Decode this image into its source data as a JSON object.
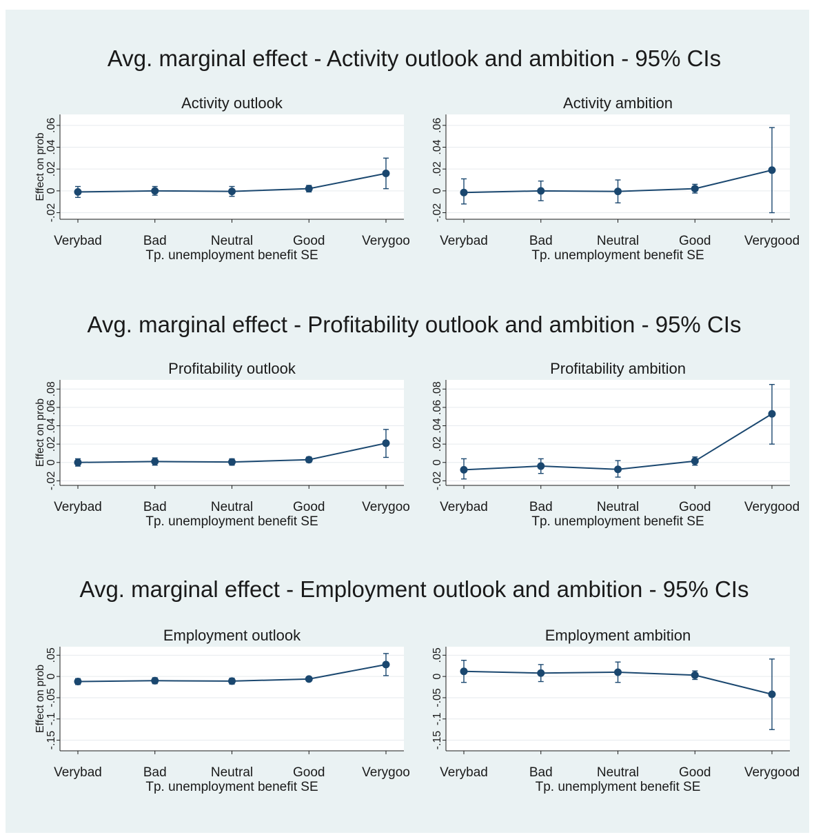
{
  "colors": {
    "figure_bg": "#eaf2f3",
    "plot_bg": "#ffffff",
    "series": "#1a476f",
    "grid": "#e6eaee",
    "text": "#1a1a1a"
  },
  "group_titles": [
    "Avg. marginal effect - Activity outlook and ambition - 95% CIs",
    "Avg. marginal effect - Profitability outlook and ambition - 95% CIs",
    "Avg. marginal effect - Employment outlook and ambition - 95% CIs"
  ],
  "chart_data": [
    {
      "type": "line",
      "title": "Activity outlook",
      "xlabel": "Tp. unemployment benefit SE",
      "ylabel": "Effect on prob",
      "categories": [
        "Verybad",
        "Bad",
        "Neutral",
        "Good",
        "Verygood"
      ],
      "category_labels": [
        "Verybad",
        "Bad",
        "Neutral",
        "Good",
        "Verygoo"
      ],
      "y_tick_labels": [
        "-.02",
        "0",
        ".02",
        ".04",
        ".06"
      ],
      "series": [
        {
          "values": [
            -0.001,
            0.0,
            -0.0005,
            0.002,
            0.016
          ],
          "ci_low": [
            -0.006,
            -0.004,
            -0.005,
            -0.001,
            0.002
          ],
          "ci_high": [
            0.004,
            0.004,
            0.004,
            0.005,
            0.03
          ]
        }
      ],
      "ylim": [
        -0.026,
        0.07
      ],
      "grid": true,
      "error_bars": "95% CI"
    },
    {
      "type": "line",
      "title": "Activity ambition",
      "xlabel": "Tp. unemployment benefit SE",
      "ylabel": "",
      "categories": [
        "Verybad",
        "Bad",
        "Neutral",
        "Good",
        "Verygood"
      ],
      "category_labels": [
        "Verybad",
        "Bad",
        "Neutral",
        "Good",
        "Verygood"
      ],
      "y_tick_labels": [
        "-.02",
        "0",
        ".02",
        ".04",
        ".06"
      ],
      "series": [
        {
          "values": [
            -0.0015,
            0.0,
            -0.0005,
            0.002,
            0.019
          ],
          "ci_low": [
            -0.012,
            -0.009,
            -0.011,
            -0.002,
            -0.02
          ],
          "ci_high": [
            0.011,
            0.009,
            0.01,
            0.006,
            0.058
          ]
        }
      ],
      "ylim": [
        -0.026,
        0.07
      ],
      "grid": true,
      "error_bars": "95% CI"
    },
    {
      "type": "line",
      "title": "Profitability outlook",
      "xlabel": "Tp. unemployment benefit SE",
      "ylabel": "Effect on prob",
      "categories": [
        "Verybad",
        "Bad",
        "Neutral",
        "Good",
        "Verygood"
      ],
      "category_labels": [
        "Verybad",
        "Bad",
        "Neutral",
        "Good",
        "Verygoo"
      ],
      "y_tick_labels": [
        "-.02",
        "0",
        ".02",
        ".04",
        ".06",
        ".08"
      ],
      "series": [
        {
          "values": [
            0.0,
            0.001,
            0.0005,
            0.003,
            0.021
          ],
          "ci_low": [
            -0.004,
            -0.003,
            -0.003,
            0.0,
            0.0055
          ],
          "ci_high": [
            0.004,
            0.005,
            0.004,
            0.006,
            0.036
          ]
        }
      ],
      "ylim": [
        -0.025,
        0.09
      ],
      "grid": true,
      "error_bars": "95% CI"
    },
    {
      "type": "line",
      "title": "Profitability ambition",
      "xlabel": "Tp. unemployment benefit SE",
      "ylabel": "",
      "categories": [
        "Verybad",
        "Bad",
        "Neutral",
        "Good",
        "Verygood"
      ],
      "category_labels": [
        "Verybad",
        "Bad",
        "Neutral",
        "Good",
        "Verygood"
      ],
      "y_tick_labels": [
        "-.02",
        "0",
        ".02",
        ".04",
        ".06",
        ".08"
      ],
      "series": [
        {
          "values": [
            -0.008,
            -0.004,
            -0.0075,
            0.0015,
            0.053
          ],
          "ci_low": [
            -0.018,
            -0.012,
            -0.016,
            -0.003,
            0.02
          ],
          "ci_high": [
            0.004,
            0.004,
            0.002,
            0.006,
            0.085
          ]
        }
      ],
      "ylim": [
        -0.025,
        0.09
      ],
      "grid": true,
      "error_bars": "95% CI"
    },
    {
      "type": "line",
      "title": "Employment outlook",
      "xlabel": "Tp. unemployment benefit SE",
      "ylabel": "Effect on prob",
      "categories": [
        "Verybad",
        "Bad",
        "Neutral",
        "Good",
        "Verygood"
      ],
      "category_labels": [
        "Verybad",
        "Bad",
        "Neutral",
        "Good",
        "Verygoo"
      ],
      "y_tick_labels": [
        "-.15",
        "-.1",
        "-.05",
        "0",
        ".05"
      ],
      "series": [
        {
          "values": [
            -0.012,
            -0.01,
            -0.011,
            -0.006,
            0.028
          ],
          "ci_low": [
            -0.019,
            -0.017,
            -0.018,
            -0.011,
            0.002
          ],
          "ci_high": [
            -0.005,
            -0.003,
            -0.004,
            -0.001,
            0.054
          ]
        }
      ],
      "ylim": [
        -0.175,
        0.07
      ],
      "grid": true,
      "error_bars": "95% CI"
    },
    {
      "type": "line",
      "title": "Employment ambition",
      "xlabel": "Tp. unemplyment benefit SE",
      "ylabel": "",
      "categories": [
        "Verybad",
        "Bad",
        "Neutral",
        "Good",
        "Verygood"
      ],
      "category_labels": [
        "Verybad",
        "Bad",
        "Neutral",
        "Good",
        "Verygood"
      ],
      "y_tick_labels": [
        "-.15",
        "-.1",
        "-.05",
        "0",
        ".05"
      ],
      "series": [
        {
          "values": [
            0.012,
            0.008,
            0.01,
            0.003,
            -0.042
          ],
          "ci_low": [
            -0.014,
            -0.012,
            -0.014,
            -0.007,
            -0.125
          ],
          "ci_high": [
            0.038,
            0.028,
            0.034,
            0.013,
            0.041
          ]
        }
      ],
      "ylim": [
        -0.175,
        0.07
      ],
      "grid": true,
      "error_bars": "95% CI"
    }
  ]
}
